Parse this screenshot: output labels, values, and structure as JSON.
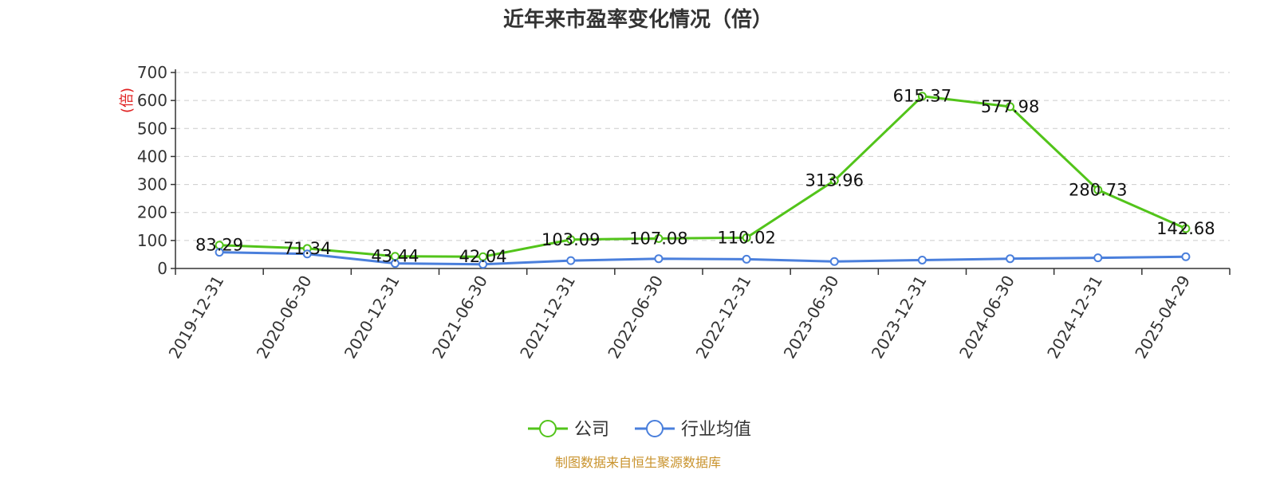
{
  "chart_data": {
    "type": "line",
    "title": "近年来市盈率变化情况（倍）",
    "ylabel": "(倍)",
    "xlabel": "",
    "ylim": [
      0,
      700
    ],
    "yticks": [
      0,
      100,
      200,
      300,
      400,
      500,
      600,
      700
    ],
    "grid": true,
    "legend_position": "bottom",
    "categories": [
      "2019-12-31",
      "2020-06-30",
      "2020-12-31",
      "2021-06-30",
      "2021-12-31",
      "2022-06-30",
      "2022-12-31",
      "2023-06-30",
      "2023-12-31",
      "2024-06-30",
      "2024-12-31",
      "2025-04-29"
    ],
    "series": [
      {
        "name": "公司",
        "color": "#52c41a",
        "values": [
          83.29,
          71.34,
          43.44,
          42.04,
          103.09,
          107.08,
          110.02,
          313.96,
          615.37,
          577.98,
          280.73,
          142.68
        ],
        "labels": [
          "83.29",
          "71.34",
          "43.44",
          "42.04",
          "103.09",
          "107.08",
          "110.02",
          "313.96",
          "615.37",
          "577.98",
          "280.73",
          "142.68"
        ]
      },
      {
        "name": "行业均值",
        "color": "#4a7fdc",
        "values": [
          58,
          52,
          18,
          15,
          28,
          35,
          33,
          25,
          30,
          35,
          38,
          42
        ]
      }
    ],
    "source": "制图数据来自恒生聚源数据库",
    "source_color": "#c9932d",
    "ylabel_color": "#e02020"
  }
}
